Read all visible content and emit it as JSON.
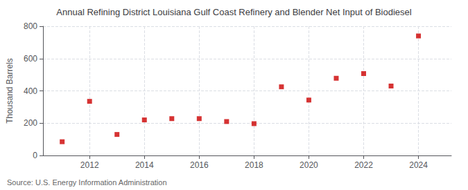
{
  "chart_data": {
    "type": "scatter",
    "title": "Annual Refining District Louisiana Gulf Coast Refinery and Blender Net Input of Biodiesel",
    "ylabel": "Thousand Barrels",
    "source": "Source: U.S. Energy Information Administration",
    "x": [
      2011,
      2012,
      2013,
      2014,
      2015,
      2016,
      2017,
      2018,
      2019,
      2020,
      2021,
      2022,
      2023,
      2024
    ],
    "values": [
      85,
      335,
      130,
      220,
      228,
      228,
      210,
      197,
      425,
      343,
      478,
      507,
      430,
      740
    ],
    "color": "#cc0000",
    "marker": "square",
    "xlim": [
      2010.3,
      2025.2
    ],
    "xticks": [
      2012,
      2014,
      2016,
      2018,
      2020,
      2022,
      2024
    ],
    "ylim": [
      0,
      800
    ],
    "yticks": [
      0,
      200,
      400,
      600,
      800
    ],
    "grid": true
  }
}
